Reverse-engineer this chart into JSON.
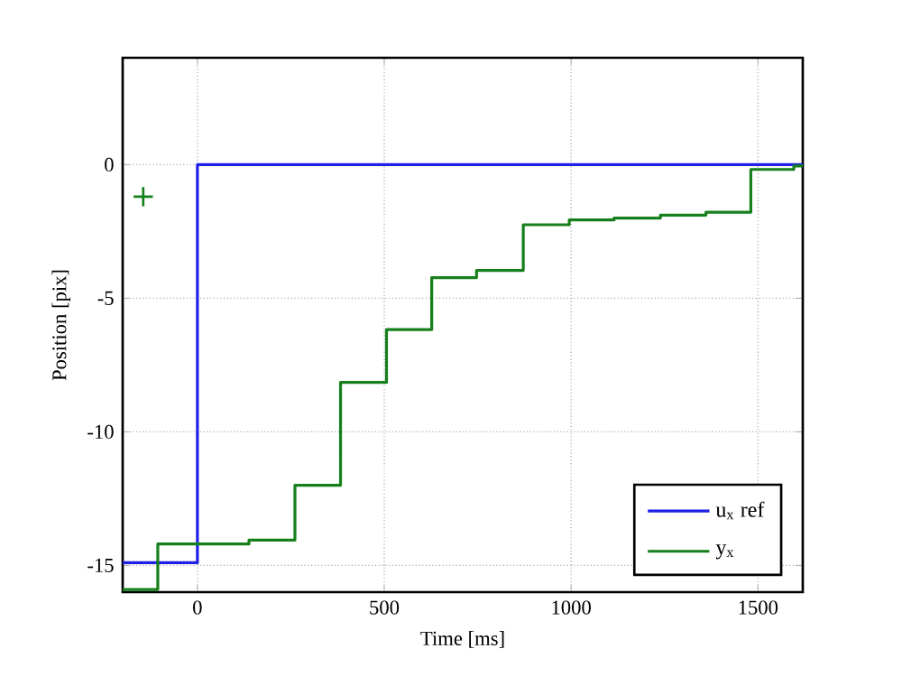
{
  "chart_data": {
    "type": "step",
    "xlabel": "Time [ms]",
    "ylabel": "Position [pix]",
    "xlim": [
      -200,
      1620
    ],
    "ylim": [
      -16,
      4
    ],
    "xticks": [
      0,
      500,
      1000,
      1500
    ],
    "yticks": [
      -15,
      -10,
      -5,
      0
    ],
    "grid": true,
    "legend": "bottom right",
    "line_style": "solid",
    "series": [
      {
        "name": "u$_{x}$ ref",
        "color": "#1f1fe6",
        "x": [
          -200,
          0,
          1620
        ],
        "values": [
          -14.9,
          0,
          0
        ]
      },
      {
        "name": "y$_{x}$",
        "color": "#16801c",
        "x": [
          -200,
          -106,
          138,
          261,
          383,
          506,
          627,
          747,
          872,
          995,
          1115,
          1239,
          1361,
          1481,
          1596,
          1620
        ],
        "values": [
          -15.9,
          -14.2,
          -14.05,
          -12.0,
          -8.15,
          -6.17,
          -4.23,
          -3.96,
          -2.25,
          -2.07,
          -2.0,
          -1.89,
          -1.78,
          -0.18,
          -0.05,
          -0.05
        ]
      },
      {
        "type": "scatter",
        "marker": "cross",
        "color": "#16801c",
        "x": [
          -145
        ],
        "values": [
          -1.2
        ]
      }
    ]
  }
}
